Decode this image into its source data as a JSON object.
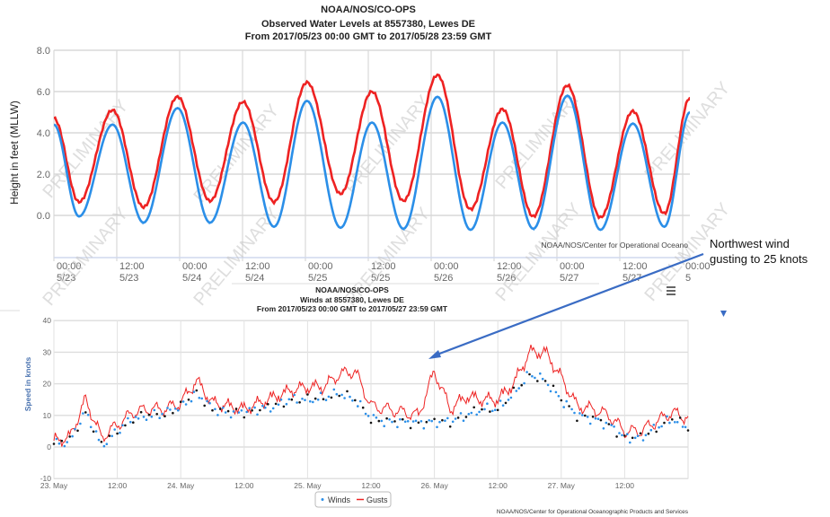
{
  "chart_data": [
    {
      "type": "line",
      "title": [
        "NOAA/NOS/CO-OPS",
        "Observed Water Levels at 8557380, Lewes DE",
        "From 2017/05/23 00:00 GMT to 2017/05/28 23:59 GMT"
      ],
      "ylabel": "Height in feet (MLLW)",
      "xlabel": "",
      "ylim": [
        -2,
        8
      ],
      "yticks": [
        "8.0",
        "6.0",
        "4.0",
        "2.0",
        "0.0"
      ],
      "xticks": [
        [
          "00:00",
          "5/23"
        ],
        [
          "12:00",
          "5/23"
        ],
        [
          "00:00",
          "5/24"
        ],
        [
          "12:00",
          "5/24"
        ],
        [
          "00:00",
          "5/25"
        ],
        [
          "12:00",
          "5/25"
        ],
        [
          "00:00",
          "5/26"
        ],
        [
          "12:00",
          "5/26"
        ],
        [
          "00:00",
          "5/27"
        ],
        [
          "12:00",
          "5/27"
        ],
        [
          "00:00",
          "5"
        ]
      ],
      "x_unit": "hours since 2017/05/23 00:00 GMT",
      "grid": true,
      "watermark": "PRELIMINARY",
      "credit": "NOAA/NOS/Center for Operational Oceano",
      "series": [
        {
          "color": "#ee2222",
          "extrema_hours": [
            0,
            4.8,
            11.2,
            17.1,
            23.6,
            29.8,
            36.1,
            42.0,
            48.3,
            54.7,
            60.7,
            66.7,
            73.2,
            79.5,
            85.6,
            91.5,
            98.0,
            104.3,
            110.5,
            116.5,
            121.4
          ],
          "extrema_values": [
            4.7,
            0.65,
            5.1,
            0.4,
            5.75,
            0.7,
            5.5,
            0.65,
            6.45,
            1.05,
            6.0,
            0.7,
            6.8,
            0.3,
            5.15,
            -0.05,
            6.3,
            -0.1,
            5.05,
            0.1,
            5.7
          ]
        },
        {
          "color": "#2b8fe8",
          "extrema_hours": [
            0,
            4.8,
            11.2,
            17.1,
            23.6,
            29.8,
            36.1,
            42.0,
            48.3,
            54.7,
            60.7,
            66.7,
            73.2,
            79.5,
            85.6,
            91.5,
            98.0,
            104.3,
            110.5,
            116.5,
            121.4
          ],
          "extrema_values": [
            4.4,
            -0.05,
            4.4,
            -0.35,
            5.2,
            -0.35,
            4.5,
            -0.55,
            5.55,
            -0.6,
            4.5,
            -0.65,
            5.75,
            -0.7,
            4.5,
            -0.65,
            5.8,
            -0.7,
            4.45,
            -0.55,
            5.0
          ]
        }
      ]
    },
    {
      "type": "line",
      "title": [
        "NOAA/NOS/CO-OPS",
        "Winds at 8557380, Lewes DE",
        "From 2017/05/23 00:00 GMT to 2017/05/27 23:59 GMT"
      ],
      "ylabel": "Speed in knots",
      "xlabel": "",
      "ylim": [
        -10,
        40
      ],
      "yticks": [
        "40",
        "30",
        "20",
        "10",
        "0",
        "-10"
      ],
      "xticks": [
        "23. May",
        "12:00",
        "24. May",
        "12:00",
        "25. May",
        "12:00",
        "26. May",
        "12:00",
        "27. May",
        "12:00"
      ],
      "x_unit": "hours since 23. May 00:00",
      "grid": true,
      "legend": "bottom-center",
      "credit": "NOAA/NOS/Center for Operational Oceanographic Products and Services",
      "x": [
        0,
        3,
        6,
        9,
        12,
        15,
        18,
        21,
        24,
        27,
        30,
        33,
        36,
        39,
        42,
        45,
        48,
        51,
        54,
        57,
        60,
        63,
        66,
        69,
        72,
        75,
        78,
        81,
        84,
        87,
        90,
        93,
        96,
        99,
        102,
        105,
        108,
        111,
        114,
        117,
        120
      ],
      "series": [
        {
          "name": "Winds",
          "color": "#2b8fe8",
          "values": [
            1,
            2,
            11,
            0.5,
            5,
            9,
            10,
            10.5,
            13,
            17,
            12,
            11,
            11,
            12,
            13,
            15,
            15,
            15.5,
            17,
            15,
            9,
            8,
            8,
            7.5,
            8,
            8,
            10,
            12,
            12,
            17,
            23,
            21,
            15,
            10,
            9,
            7,
            3,
            3,
            6,
            9,
            6
          ]
        },
        {
          "name": "Gusts",
          "color": "#ee2222",
          "values": [
            2,
            3,
            15,
            3,
            7,
            11,
            12,
            12,
            14,
            21,
            14,
            13,
            12,
            14,
            16,
            18,
            19,
            19,
            23,
            24,
            13,
            12,
            11,
            10,
            24,
            12,
            16,
            15,
            15,
            20,
            30,
            30,
            22,
            13,
            12,
            10,
            5,
            5,
            8,
            11,
            9
          ]
        }
      ]
    }
  ],
  "annotation": {
    "text_line1": "Northwest wind",
    "text_line2": "gusting to 25 knots",
    "arrow_color": "#3a6cc4"
  },
  "menu_icon": "hamburger-menu-icon"
}
